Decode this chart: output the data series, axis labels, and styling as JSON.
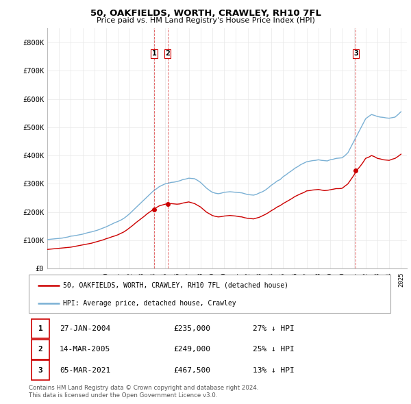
{
  "title1": "50, OAKFIELDS, WORTH, CRAWLEY, RH10 7FL",
  "title2": "Price paid vs. HM Land Registry's House Price Index (HPI)",
  "grid_color": "#e8e8e8",
  "hpi_color": "#7ab0d4",
  "price_color": "#cc0000",
  "transactions": [
    {
      "label": "1",
      "date": "27-JAN-2004",
      "price": 235000,
      "hpi_pct": "27% ↓ HPI",
      "x": 2004.07
    },
    {
      "label": "2",
      "date": "14-MAR-2005",
      "price": 249000,
      "hpi_pct": "25% ↓ HPI",
      "x": 2005.2
    },
    {
      "label": "3",
      "date": "05-MAR-2021",
      "price": 467500,
      "hpi_pct": "13% ↓ HPI",
      "x": 2021.17
    }
  ],
  "ylim_max": 850000,
  "yticks": [
    0,
    100000,
    200000,
    300000,
    400000,
    500000,
    600000,
    700000,
    800000
  ],
  "ytick_labels": [
    "£0",
    "£100K",
    "£200K",
    "£300K",
    "£400K",
    "£500K",
    "£600K",
    "£700K",
    "£800K"
  ],
  "legend_label_red": "50, OAKFIELDS, WORTH, CRAWLEY, RH10 7FL (detached house)",
  "legend_label_blue": "HPI: Average price, detached house, Crawley",
  "footnote1": "Contains HM Land Registry data © Crown copyright and database right 2024.",
  "footnote2": "This data is licensed under the Open Government Licence v3.0.",
  "hpi_data_x": [
    1995.0,
    1995.25,
    1995.5,
    1995.75,
    1996.0,
    1996.25,
    1996.5,
    1996.75,
    1997.0,
    1997.25,
    1997.5,
    1997.75,
    1998.0,
    1998.25,
    1998.5,
    1998.75,
    1999.0,
    1999.25,
    1999.5,
    1999.75,
    2000.0,
    2000.25,
    2000.5,
    2000.75,
    2001.0,
    2001.25,
    2001.5,
    2001.75,
    2002.0,
    2002.25,
    2002.5,
    2002.75,
    2003.0,
    2003.25,
    2003.5,
    2003.75,
    2004.0,
    2004.25,
    2004.5,
    2004.75,
    2005.0,
    2005.25,
    2005.5,
    2005.75,
    2006.0,
    2006.25,
    2006.5,
    2006.75,
    2007.0,
    2007.25,
    2007.5,
    2007.75,
    2008.0,
    2008.25,
    2008.5,
    2008.75,
    2009.0,
    2009.25,
    2009.5,
    2009.75,
    2010.0,
    2010.25,
    2010.5,
    2010.75,
    2011.0,
    2011.25,
    2011.5,
    2011.75,
    2012.0,
    2012.25,
    2012.5,
    2012.75,
    2013.0,
    2013.25,
    2013.5,
    2013.75,
    2014.0,
    2014.25,
    2014.5,
    2014.75,
    2015.0,
    2015.25,
    2015.5,
    2015.75,
    2016.0,
    2016.25,
    2016.5,
    2016.75,
    2017.0,
    2017.25,
    2017.5,
    2017.75,
    2018.0,
    2018.25,
    2018.5,
    2018.75,
    2019.0,
    2019.25,
    2019.5,
    2019.75,
    2020.0,
    2020.25,
    2020.5,
    2020.75,
    2021.0,
    2021.25,
    2021.5,
    2021.75,
    2022.0,
    2022.25,
    2022.5,
    2022.75,
    2023.0,
    2023.25,
    2023.5,
    2023.75,
    2024.0,
    2024.25,
    2024.5,
    2024.75,
    2025.0
  ],
  "hpi_data_y": [
    103000,
    104000,
    105000,
    106000,
    107000,
    108000,
    110000,
    112000,
    115000,
    116000,
    118000,
    120000,
    122000,
    125000,
    128000,
    130000,
    133000,
    136000,
    140000,
    144000,
    148000,
    153000,
    158000,
    163000,
    167000,
    172000,
    178000,
    186000,
    195000,
    205000,
    215000,
    225000,
    235000,
    245000,
    255000,
    265000,
    275000,
    282000,
    290000,
    295000,
    300000,
    302000,
    305000,
    306000,
    308000,
    311000,
    315000,
    317000,
    320000,
    319000,
    318000,
    312000,
    305000,
    295000,
    285000,
    277000,
    270000,
    267000,
    265000,
    267000,
    270000,
    271000,
    272000,
    271000,
    270000,
    269000,
    268000,
    265000,
    262000,
    261000,
    260000,
    263000,
    268000,
    272000,
    278000,
    286000,
    295000,
    302000,
    310000,
    315000,
    325000,
    332000,
    340000,
    347000,
    355000,
    361000,
    368000,
    373000,
    378000,
    380000,
    382000,
    383000,
    385000,
    383000,
    382000,
    381000,
    385000,
    387000,
    390000,
    391000,
    392000,
    400000,
    410000,
    430000,
    450000,
    470000,
    490000,
    510000,
    530000,
    538000,
    545000,
    542000,
    538000,
    536000,
    535000,
    533000,
    532000,
    534000,
    536000,
    545000,
    555000
  ],
  "price_data_x": [
    1995.0,
    1995.25,
    1995.5,
    1995.75,
    1996.0,
    1996.25,
    1996.5,
    1996.75,
    1997.0,
    1997.25,
    1997.5,
    1997.75,
    1998.0,
    1998.25,
    1998.5,
    1998.75,
    1999.0,
    1999.25,
    1999.5,
    1999.75,
    2000.0,
    2000.25,
    2000.5,
    2000.75,
    2001.0,
    2001.25,
    2001.5,
    2001.75,
    2002.0,
    2002.25,
    2002.5,
    2002.75,
    2003.0,
    2003.25,
    2003.5,
    2003.75,
    2004.0,
    2004.25,
    2004.5,
    2004.75,
    2005.0,
    2005.25,
    2005.5,
    2005.75,
    2006.0,
    2006.25,
    2006.5,
    2006.75,
    2007.0,
    2007.25,
    2007.5,
    2007.75,
    2008.0,
    2008.25,
    2008.5,
    2008.75,
    2009.0,
    2009.25,
    2009.5,
    2009.75,
    2010.0,
    2010.25,
    2010.5,
    2010.75,
    2011.0,
    2011.25,
    2011.5,
    2011.75,
    2012.0,
    2012.25,
    2012.5,
    2012.75,
    2013.0,
    2013.25,
    2013.5,
    2013.75,
    2014.0,
    2014.25,
    2014.5,
    2014.75,
    2015.0,
    2015.25,
    2015.5,
    2015.75,
    2016.0,
    2016.25,
    2016.5,
    2016.75,
    2017.0,
    2017.25,
    2017.5,
    2017.75,
    2018.0,
    2018.25,
    2018.5,
    2018.75,
    2019.0,
    2019.25,
    2019.5,
    2019.75,
    2020.0,
    2020.25,
    2020.5,
    2020.75,
    2021.0,
    2021.25,
    2021.5,
    2021.75,
    2022.0,
    2022.25,
    2022.5,
    2022.75,
    2023.0,
    2023.25,
    2023.5,
    2023.75,
    2024.0,
    2024.25,
    2024.5,
    2024.75,
    2025.0
  ],
  "price_data_y": [
    68000,
    69000,
    70000,
    71000,
    72000,
    73000,
    74000,
    75000,
    76000,
    78000,
    80000,
    82000,
    84000,
    86000,
    88000,
    90000,
    93000,
    96000,
    99000,
    102000,
    106000,
    109000,
    113000,
    116000,
    120000,
    125000,
    130000,
    137000,
    145000,
    153000,
    162000,
    170000,
    178000,
    186000,
    195000,
    202000,
    210000,
    216000,
    222000,
    225000,
    228000,
    229000,
    230000,
    229000,
    228000,
    229000,
    232000,
    234000,
    236000,
    233000,
    230000,
    224000,
    218000,
    209000,
    200000,
    194000,
    188000,
    185000,
    183000,
    184000,
    186000,
    187000,
    188000,
    187000,
    186000,
    184000,
    183000,
    180000,
    178000,
    177000,
    176000,
    179000,
    182000,
    187000,
    192000,
    198000,
    205000,
    211000,
    218000,
    223000,
    230000,
    236000,
    242000,
    248000,
    255000,
    260000,
    265000,
    269000,
    275000,
    276000,
    278000,
    279000,
    280000,
    278000,
    276000,
    277000,
    279000,
    281000,
    283000,
    283000,
    284000,
    292000,
    300000,
    315000,
    330000,
    348000,
    360000,
    374000,
    390000,
    394000,
    400000,
    396000,
    390000,
    388000,
    385000,
    384000,
    383000,
    387000,
    390000,
    397000,
    405000
  ]
}
